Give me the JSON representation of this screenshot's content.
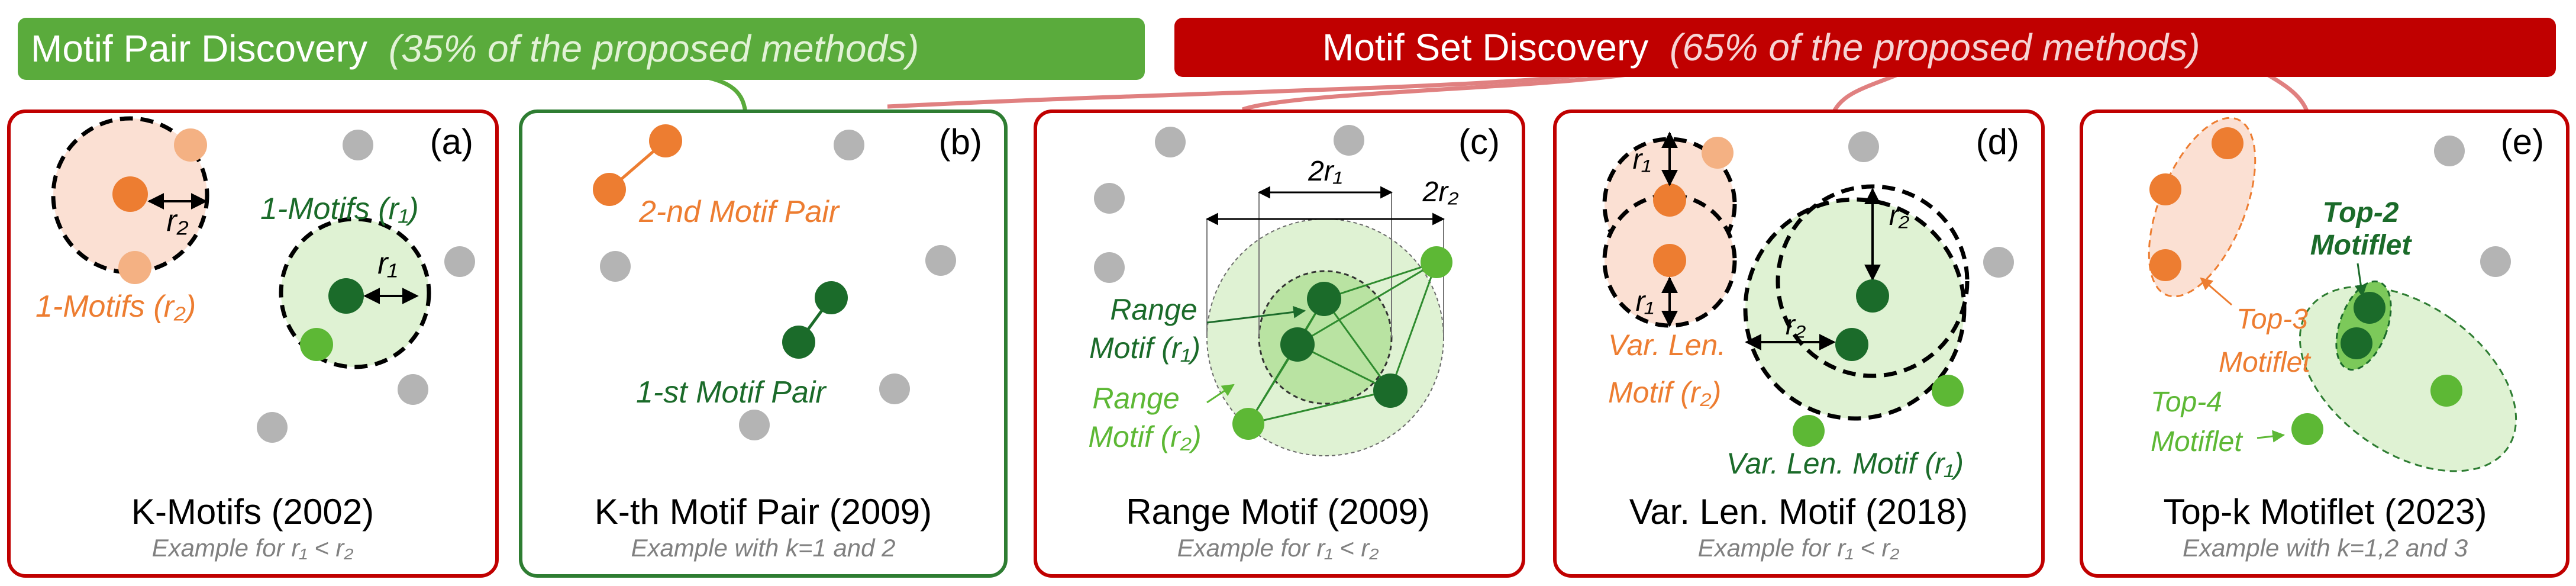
{
  "banners": {
    "pair": {
      "main": "Motif Pair Discovery",
      "note": "(35% of the proposed  methods)"
    },
    "set": {
      "main": "Motif Set Discovery",
      "note": "(65% of the proposed  methods)"
    }
  },
  "colors": {
    "red_frame": "#c00000",
    "green_frame": "#2e7d32",
    "banner_green": "#5aab3c",
    "orange": "#ed7d31",
    "orange_light": "#f4b183",
    "orange_fill": "#fbe0d3",
    "dark_green": "#1b6b2a",
    "mid_green": "#5db835",
    "green_fill": "#dff2d3",
    "grey": "#b4b4b4",
    "caption_grey": "#808080"
  },
  "panels": [
    {
      "letter": "(a)",
      "title": "K-Motifs (2002)",
      "subtitle": "Example for r₁ < r₂",
      "labels": {
        "motifs_r1": "1-Motifs (r₁)",
        "motifs_r2": "1-Motifs (r₂)",
        "r1": "r₁",
        "r2": "r₂"
      }
    },
    {
      "letter": "(b)",
      "title": "K-th Motif Pair (2009)",
      "subtitle": "Example with k=1 and 2",
      "labels": {
        "second_pair": "2-nd Motif Pair",
        "first_pair": "1-st Motif Pair"
      }
    },
    {
      "letter": "(c)",
      "title": "Range Motif (2009)",
      "subtitle": "Example for r₁ < r₂",
      "labels": {
        "two_r1": "2r₁",
        "two_r2": "2r₂",
        "range_r1_line1": "Range",
        "range_r1_line2": "Motif (r₁)",
        "range_r2_line1": "Range",
        "range_r2_line2": "Motif (r₂)"
      }
    },
    {
      "letter": "(d)",
      "title": "Var. Len. Motif (2018)",
      "subtitle": "Example for r₁ < r₂",
      "labels": {
        "r1": "r₁",
        "r2": "r₂",
        "vl_r2_line1": "Var. Len.",
        "vl_r2_line2": "Motif (r₂)",
        "vl_r1": "Var. Len. Motif (r₁)"
      }
    },
    {
      "letter": "(e)",
      "title": "Top-k Motiflet (2023)",
      "subtitle": "Example with k=1,2 and 3",
      "labels": {
        "top2_line1": "Top-2",
        "top2_line2": "Motiflet",
        "top3_line1": "Top-3",
        "top3_line2": "Motiflet",
        "top4_line1": "Top-4",
        "top4_line2": "Motiflet"
      }
    }
  ]
}
